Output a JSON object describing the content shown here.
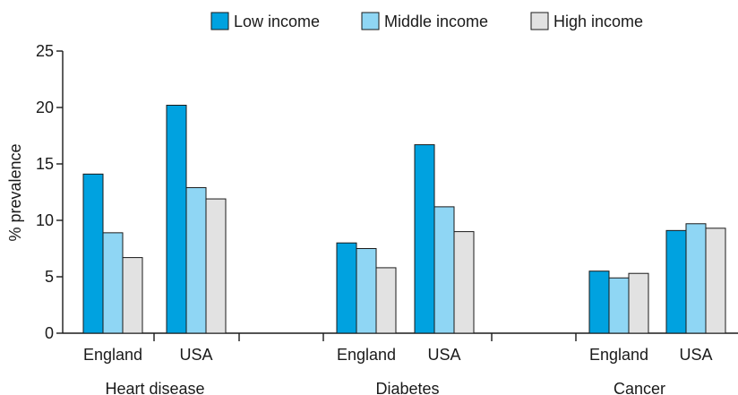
{
  "chart_data": {
    "type": "bar",
    "title": "",
    "xlabel": "",
    "ylabel": "% prevalence",
    "ylim": [
      0,
      25
    ],
    "yticks": [
      0,
      5,
      10,
      15,
      20,
      25
    ],
    "grid": false,
    "legend_position": "top-right",
    "series": [
      {
        "name": "Low income",
        "color": "#00a2e0"
      },
      {
        "name": "Middle income",
        "color": "#8fd6f4"
      },
      {
        "name": "High income",
        "color": "#e2e2e2"
      }
    ],
    "groups": [
      {
        "label": "Heart disease",
        "countries": [
          {
            "label": "England",
            "values": [
              14.1,
              8.9,
              6.7
            ]
          },
          {
            "label": "USA",
            "values": [
              20.2,
              12.9,
              11.9
            ]
          }
        ]
      },
      {
        "label": "Diabetes",
        "countries": [
          {
            "label": "England",
            "values": [
              8.0,
              7.5,
              5.8
            ]
          },
          {
            "label": "USA",
            "values": [
              16.7,
              11.2,
              9.0
            ]
          }
        ]
      },
      {
        "label": "Cancer",
        "countries": [
          {
            "label": "England",
            "values": [
              5.5,
              4.9,
              5.3
            ]
          },
          {
            "label": "USA",
            "values": [
              9.1,
              9.7,
              9.3
            ]
          }
        ]
      }
    ]
  }
}
